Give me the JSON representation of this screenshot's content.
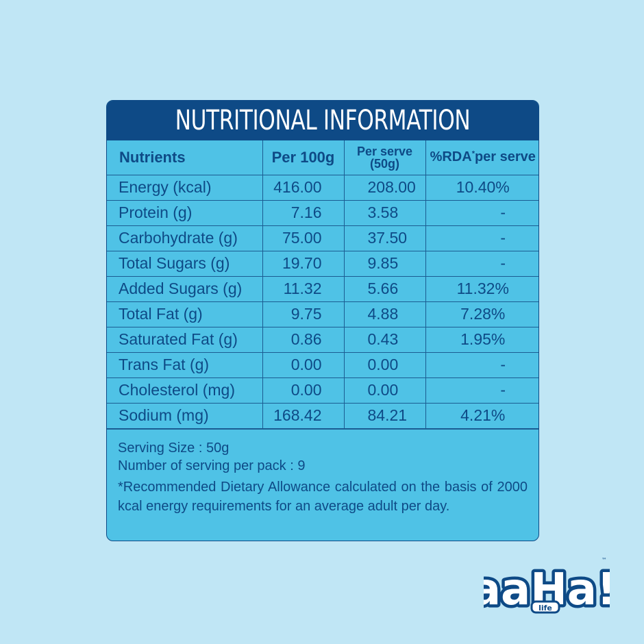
{
  "title": "NUTRITIONAL INFORMATION",
  "table": {
    "headers": {
      "nutrients": "Nutrients",
      "per100g": "Per 100g",
      "per_serve_line1": "Per serve",
      "per_serve_line2": "(50g)",
      "rda_pre": "%RDA",
      "rda_star": "*",
      "rda_post": "per serve"
    },
    "rows": [
      {
        "name": "Energy (kcal)",
        "per100": "416.00",
        "serve": "208.00",
        "rda": "10.40%"
      },
      {
        "name": "Protein (g)",
        "per100": "7.16",
        "serve": "3.58",
        "rda": "-"
      },
      {
        "name": "Carbohydrate (g)",
        "per100": "75.00",
        "serve": "37.50",
        "rda": "-"
      },
      {
        "name": "Total Sugars (g)",
        "per100": "19.70",
        "serve": "9.85",
        "rda": "-"
      },
      {
        "name": "Added Sugars (g)",
        "per100": "11.32",
        "serve": "5.66",
        "rda": "11.32%"
      },
      {
        "name": "Total Fat (g)",
        "per100": "9.75",
        "serve": "4.88",
        "rda": "7.28%"
      },
      {
        "name": "Saturated Fat (g)",
        "per100": "0.86",
        "serve": "0.43",
        "rda": "1.95%"
      },
      {
        "name": "Trans Fat (g)",
        "per100": "0.00",
        "serve": "0.00",
        "rda": "-"
      },
      {
        "name": "Cholesterol (mg)",
        "per100": "0.00",
        "serve": "0.00",
        "rda": "-"
      },
      {
        "name": "Sodium (mg)",
        "per100": "168.42",
        "serve": "84.21",
        "rda": "4.21%"
      }
    ]
  },
  "footer": {
    "serving_size": "Serving Size : 50g",
    "servings_per_pack": "Number of serving per pack : 9",
    "note": "*Recommended Dietary Allowance calculated on the basis of 2000 kcal energy requirements for an average adult per day."
  },
  "logo": {
    "main": "aaHa!",
    "sub": "life",
    "tm": "™"
  },
  "colors": {
    "background": "#c0e6f5",
    "card": "#4fc2e6",
    "header": "#0e4a86",
    "text": "#0e4a86"
  }
}
